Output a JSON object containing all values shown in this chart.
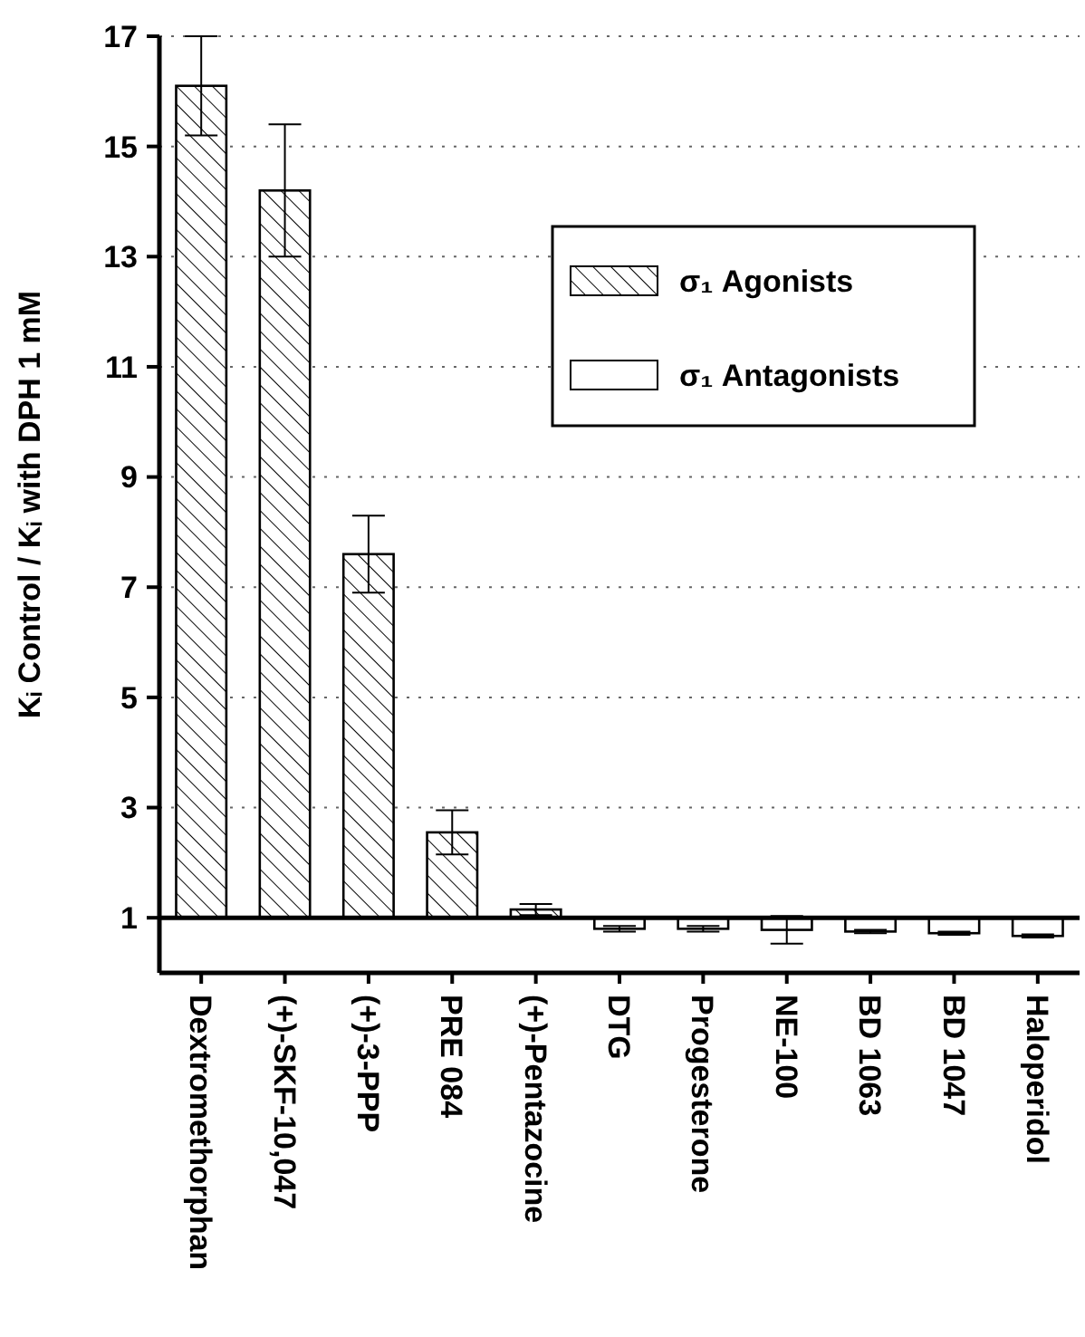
{
  "chart_data": {
    "type": "bar",
    "ylabel": "Kᵢ Control / Kᵢ with DPH 1 mM",
    "categories": [
      "Dextromethorphan",
      "(+)-SKF-10,047",
      "(+)-3-PPP",
      "PRE 084",
      "(+)-Pentazocine",
      "DTG",
      "Progesterone",
      "NE-100",
      "BD 1063",
      "BD 1047",
      "Haloperidol"
    ],
    "series": [
      {
        "name": "σ₁ Agonists",
        "color": "#000000",
        "base": [
          1,
          1,
          1,
          1,
          1,
          null,
          null,
          null,
          null,
          null,
          null
        ],
        "values": [
          15.1,
          13.2,
          6.6,
          1.55,
          0.15,
          null,
          null,
          null,
          null,
          null,
          null
        ],
        "errors": [
          0.9,
          1.2,
          0.7,
          0.4,
          0.1,
          null,
          null,
          null,
          null,
          null,
          null
        ]
      },
      {
        "name": "σ₁ Antagonists",
        "color": "#ffffff",
        "base": [
          null,
          null,
          null,
          null,
          null,
          1,
          1,
          1,
          1,
          1,
          1
        ],
        "values": [
          null,
          null,
          null,
          null,
          null,
          -0.2,
          -0.2,
          -0.22,
          -0.25,
          -0.28,
          -0.33
        ],
        "errors": [
          null,
          null,
          null,
          null,
          null,
          0.05,
          0.05,
          0.25,
          0.03,
          0.03,
          0.03
        ]
      }
    ],
    "ref_lines": [
      {
        "axis": "y",
        "value": 1,
        "color": "#000000"
      }
    ],
    "ylim": [
      0,
      17
    ],
    "yticks": [
      1,
      3,
      5,
      7,
      9,
      11,
      13,
      15,
      17
    ],
    "grid": "y",
    "legend": "top right"
  }
}
